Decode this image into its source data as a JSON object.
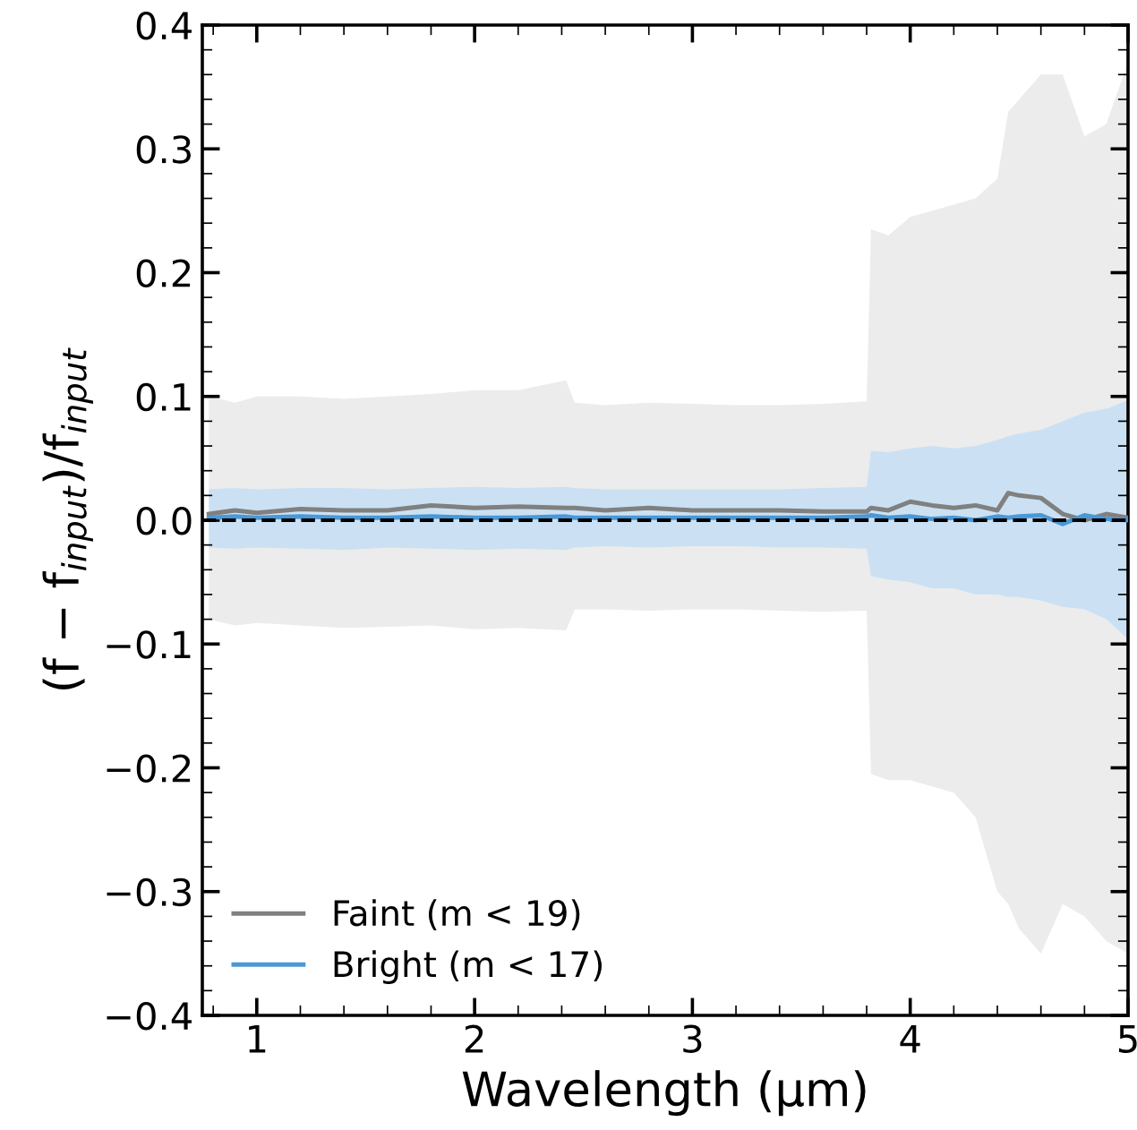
{
  "chart_data": {
    "type": "line",
    "xlabel": "Wavelength (μm)",
    "ylabel": "(f − f$_{input}$)/f$_{input}$",
    "x": [
      0.78,
      0.9,
      1.0,
      1.2,
      1.4,
      1.6,
      1.8,
      2.0,
      2.2,
      2.42,
      2.46,
      2.6,
      2.8,
      3.0,
      3.2,
      3.4,
      3.6,
      3.8,
      3.82,
      3.9,
      4.0,
      4.1,
      4.2,
      4.3,
      4.4,
      4.45,
      4.5,
      4.6,
      4.7,
      4.8,
      4.9,
      5.0
    ],
    "series": [
      {
        "name": "Faint (m < 19)",
        "color": "#808080",
        "values": [
          0.005,
          0.008,
          0.006,
          0.009,
          0.008,
          0.008,
          0.012,
          0.01,
          0.011,
          0.01,
          0.01,
          0.008,
          0.01,
          0.008,
          0.008,
          0.008,
          0.007,
          0.007,
          0.01,
          0.008,
          0.015,
          0.012,
          0.01,
          0.012,
          0.008,
          0.022,
          0.02,
          0.018,
          0.005,
          0.0,
          0.005,
          0.002
        ],
        "upper": [
          0.1,
          0.095,
          0.1,
          0.1,
          0.098,
          0.1,
          0.102,
          0.105,
          0.105,
          0.113,
          0.095,
          0.093,
          0.095,
          0.094,
          0.093,
          0.093,
          0.094,
          0.096,
          0.235,
          0.23,
          0.245,
          0.25,
          0.255,
          0.26,
          0.276,
          0.33,
          0.34,
          0.36,
          0.36,
          0.31,
          0.32,
          0.37
        ],
        "lower": [
          -0.08,
          -0.085,
          -0.083,
          -0.085,
          -0.087,
          -0.086,
          -0.085,
          -0.088,
          -0.087,
          -0.089,
          -0.072,
          -0.072,
          -0.073,
          -0.072,
          -0.072,
          -0.073,
          -0.074,
          -0.073,
          -0.205,
          -0.21,
          -0.21,
          -0.215,
          -0.22,
          -0.24,
          -0.3,
          -0.31,
          -0.33,
          -0.35,
          -0.31,
          -0.32,
          -0.34,
          -0.35
        ]
      },
      {
        "name": "Bright (m < 17)",
        "color": "#4a98d6",
        "values": [
          0.002,
          0.003,
          0.002,
          0.003,
          0.002,
          0.002,
          0.003,
          0.002,
          0.002,
          0.003,
          0.002,
          0.002,
          0.002,
          0.002,
          0.002,
          0.002,
          0.002,
          0.003,
          0.004,
          0.002,
          0.003,
          0.001,
          0.002,
          0.0,
          0.003,
          0.002,
          0.003,
          0.004,
          -0.003,
          0.004,
          0.001,
          0.0
        ],
        "upper": [
          0.025,
          0.026,
          0.025,
          0.026,
          0.026,
          0.025,
          0.026,
          0.027,
          0.026,
          0.027,
          0.026,
          0.025,
          0.025,
          0.025,
          0.025,
          0.025,
          0.026,
          0.027,
          0.056,
          0.055,
          0.058,
          0.06,
          0.058,
          0.06,
          0.065,
          0.068,
          0.07,
          0.073,
          0.08,
          0.087,
          0.09,
          0.097
        ],
        "lower": [
          -0.022,
          -0.023,
          -0.022,
          -0.023,
          -0.024,
          -0.022,
          -0.023,
          -0.024,
          -0.023,
          -0.024,
          -0.022,
          -0.021,
          -0.022,
          -0.021,
          -0.021,
          -0.022,
          -0.022,
          -0.023,
          -0.045,
          -0.048,
          -0.05,
          -0.055,
          -0.055,
          -0.06,
          -0.06,
          -0.062,
          -0.062,
          -0.065,
          -0.07,
          -0.072,
          -0.08,
          -0.096
        ]
      }
    ],
    "ref_lines": [
      {
        "axis": "y",
        "value": 0,
        "color": "#000000",
        "line_style": "dashed"
      }
    ],
    "xlim": [
      0.75,
      5
    ],
    "xticks": [
      1,
      2,
      3,
      4,
      5
    ],
    "ylim": [
      -0.4,
      0.4
    ],
    "yticks": [
      {
        "value": -0.4,
        "label": "−0.4"
      },
      {
        "value": -0.3,
        "label": "−0.3"
      },
      {
        "value": -0.2,
        "label": "−0.2"
      },
      {
        "value": -0.1,
        "label": "−0.1"
      },
      {
        "value": 0,
        "label": "0.0"
      },
      0.1,
      0.2,
      0.3,
      0.4
    ],
    "grid": false,
    "legend": "bottom left",
    "marker": "none",
    "line_style": "solid"
  }
}
